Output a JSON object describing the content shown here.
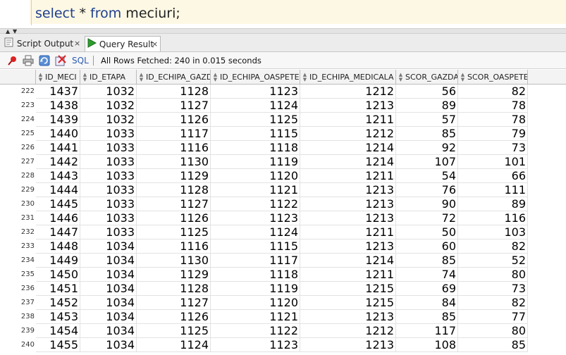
{
  "editor": {
    "kw_select": "select",
    "op_star": " * ",
    "kw_from": "from",
    "table_name": " meciuri;"
  },
  "tabs": [
    {
      "label": "Script Output",
      "close": "×"
    },
    {
      "label": "Query Result",
      "close": "×"
    }
  ],
  "toolbar": {
    "sql_label": "SQL",
    "status": "All Rows Fetched: 240 in 0.015 seconds"
  },
  "grid": {
    "columns": [
      "ID_MECI",
      "ID_ETAPA",
      "ID_ECHIPA_GAZDA",
      "ID_ECHIPA_OASPETE",
      "ID_ECHIPA_MEDICALA",
      "SCOR_GAZDA",
      "SCOR_OASPETE"
    ],
    "rows": [
      [
        "222",
        "1437",
        "1032",
        "1128",
        "1123",
        "1212",
        "56",
        "82"
      ],
      [
        "223",
        "1438",
        "1032",
        "1127",
        "1124",
        "1213",
        "89",
        "78"
      ],
      [
        "224",
        "1439",
        "1032",
        "1126",
        "1125",
        "1211",
        "57",
        "78"
      ],
      [
        "225",
        "1440",
        "1033",
        "1117",
        "1115",
        "1212",
        "85",
        "79"
      ],
      [
        "226",
        "1441",
        "1033",
        "1116",
        "1118",
        "1214",
        "92",
        "73"
      ],
      [
        "227",
        "1442",
        "1033",
        "1130",
        "1119",
        "1214",
        "107",
        "101"
      ],
      [
        "228",
        "1443",
        "1033",
        "1129",
        "1120",
        "1211",
        "54",
        "66"
      ],
      [
        "229",
        "1444",
        "1033",
        "1128",
        "1121",
        "1213",
        "76",
        "111"
      ],
      [
        "230",
        "1445",
        "1033",
        "1127",
        "1122",
        "1213",
        "90",
        "89"
      ],
      [
        "231",
        "1446",
        "1033",
        "1126",
        "1123",
        "1213",
        "72",
        "116"
      ],
      [
        "232",
        "1447",
        "1033",
        "1125",
        "1124",
        "1211",
        "50",
        "103"
      ],
      [
        "233",
        "1448",
        "1034",
        "1116",
        "1115",
        "1213",
        "60",
        "82"
      ],
      [
        "234",
        "1449",
        "1034",
        "1130",
        "1117",
        "1214",
        "85",
        "52"
      ],
      [
        "235",
        "1450",
        "1034",
        "1129",
        "1118",
        "1211",
        "74",
        "80"
      ],
      [
        "236",
        "1451",
        "1034",
        "1128",
        "1119",
        "1215",
        "69",
        "73"
      ],
      [
        "237",
        "1452",
        "1034",
        "1127",
        "1120",
        "1215",
        "84",
        "82"
      ],
      [
        "238",
        "1453",
        "1034",
        "1126",
        "1121",
        "1213",
        "85",
        "77"
      ],
      [
        "239",
        "1454",
        "1034",
        "1125",
        "1122",
        "1212",
        "117",
        "80"
      ],
      [
        "240",
        "1455",
        "1034",
        "1124",
        "1123",
        "1213",
        "108",
        "85"
      ]
    ]
  },
  "colors": {
    "keyword": "#1f3f8f",
    "editor_line": "#fdf8e4",
    "run_icon": "#2e9e2e"
  },
  "icons": [
    "pin-icon",
    "print-icon",
    "refresh-icon",
    "clear-icon",
    "run-icon",
    "script-output-icon",
    "sort-icon"
  ]
}
